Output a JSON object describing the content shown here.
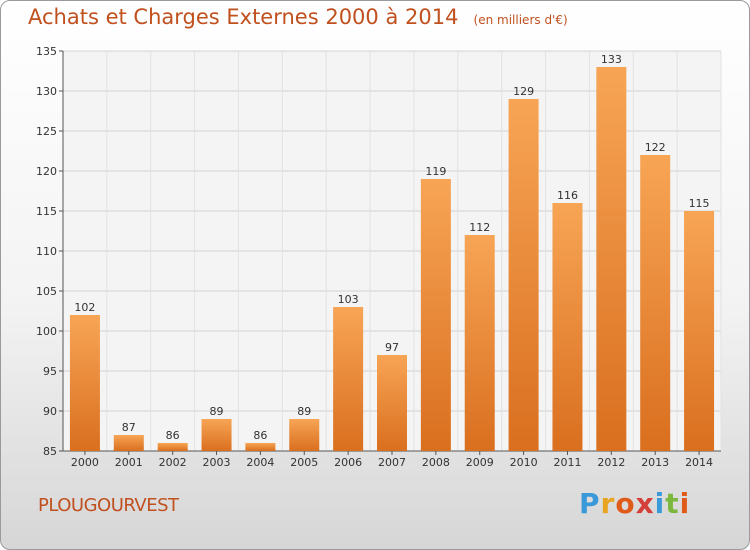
{
  "title": "Achats et Charges Externes 2000 à 2014",
  "unit_note": "(en milliers d'€)",
  "commune": "PLOUGOURVEST",
  "brand": {
    "letters": [
      "P",
      "r",
      "o",
      "x",
      "i",
      "t",
      "i"
    ],
    "colors": [
      "#3a9ad9",
      "#e8a320",
      "#e05a1a",
      "#d43f3a",
      "#3a9ad9",
      "#7cb83e",
      "#e05a1a"
    ]
  },
  "colors": {
    "bar_light": "#f7a555",
    "bar_dark": "#d96f1f",
    "title": "#c0501e"
  },
  "chart_data": {
    "type": "bar",
    "title": "Achats et Charges Externes 2000 à 2014",
    "subtitle": "(en milliers d'€)",
    "categories": [
      "2000",
      "2001",
      "2002",
      "2003",
      "2004",
      "2005",
      "2006",
      "2007",
      "2008",
      "2009",
      "2010",
      "2011",
      "2012",
      "2013",
      "2014"
    ],
    "values": [
      102,
      87,
      86,
      89,
      86,
      89,
      103,
      97,
      119,
      112,
      129,
      116,
      133,
      122,
      115
    ],
    "ylim": [
      85,
      135
    ],
    "yticks": [
      85,
      90,
      95,
      100,
      105,
      110,
      115,
      120,
      125,
      130,
      135
    ],
    "grid": true,
    "data_labels": true
  }
}
